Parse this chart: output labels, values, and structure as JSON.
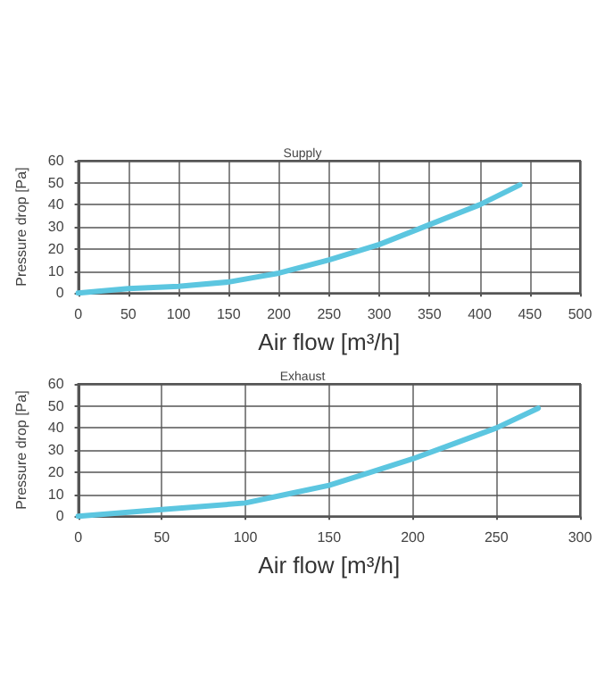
{
  "chart_data": [
    {
      "type": "line",
      "title": "Supply",
      "xlabel": "Air flow [m³/h]",
      "ylabel": "Pressure drop [Pa]",
      "series": [
        {
          "color": "#5cc6e0",
          "x": [
            0,
            50,
            100,
            150,
            175,
            200,
            250,
            300,
            350,
            400,
            440
          ],
          "values": [
            0,
            2,
            3,
            5,
            7,
            9,
            15,
            22,
            31,
            40,
            49
          ]
        }
      ],
      "xlim": [
        0,
        500
      ],
      "xticks": [
        0,
        50,
        100,
        150,
        200,
        250,
        300,
        350,
        400,
        450,
        500
      ],
      "ylim": [
        0,
        60
      ],
      "yticks": [
        0,
        10,
        20,
        30,
        40,
        50,
        60
      ],
      "grid": true,
      "marker": "none",
      "line_style": "solid"
    },
    {
      "type": "line",
      "title": "Exhaust",
      "xlabel": "Air flow [m³/h]",
      "ylabel": "Pressure drop [Pa]",
      "series": [
        {
          "color": "#5cc6e0",
          "x": [
            0,
            50,
            100,
            125,
            150,
            175,
            200,
            250,
            275
          ],
          "values": [
            0,
            3,
            6,
            10,
            14,
            20,
            26,
            40,
            49
          ]
        }
      ],
      "xlim": [
        0,
        300
      ],
      "xticks": [
        0,
        50,
        100,
        150,
        200,
        250,
        300
      ],
      "ylim": [
        0,
        60
      ],
      "yticks": [
        0,
        10,
        20,
        30,
        40,
        50,
        60
      ],
      "grid": true,
      "marker": "none",
      "line_style": "solid"
    }
  ]
}
